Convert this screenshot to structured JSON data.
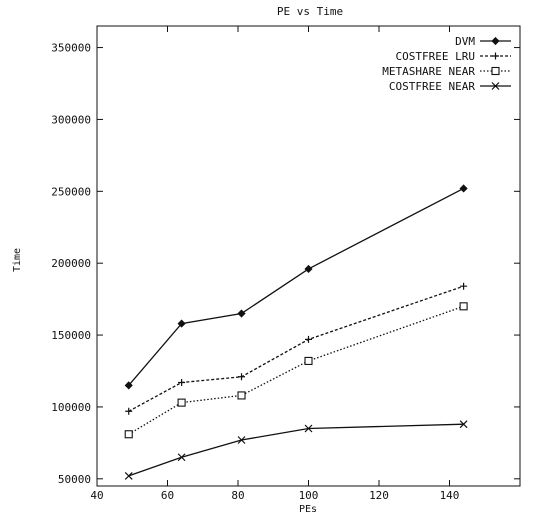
{
  "chart_data": {
    "type": "line",
    "title": "PE vs Time",
    "xlabel": "PEs",
    "ylabel": "Time",
    "xlim": [
      40,
      160
    ],
    "ylim": [
      45000,
      365000
    ],
    "x_ticks": [
      "40",
      "60",
      "80",
      "100",
      "120",
      "140"
    ],
    "y_ticks": [
      "50000",
      "100000",
      "150000",
      "200000",
      "250000",
      "300000",
      "350000"
    ],
    "x_tick_values": [
      40,
      60,
      80,
      100,
      120,
      140
    ],
    "y_tick_values": [
      50000,
      100000,
      150000,
      200000,
      250000,
      300000,
      350000
    ],
    "grid": false,
    "legend_position": "top-right",
    "series": [
      {
        "name": "DVM",
        "marker": "diamond",
        "dash": "solid",
        "x": [
          49,
          64,
          81,
          100,
          144
        ],
        "y": [
          115000,
          158000,
          165000,
          196000,
          252000
        ]
      },
      {
        "name": "COSTFREE LRU",
        "marker": "plus",
        "dash": "dashed",
        "x": [
          49,
          64,
          81,
          100,
          144
        ],
        "y": [
          97000,
          117000,
          121000,
          147000,
          184000
        ]
      },
      {
        "name": "METASHARE NEAR",
        "marker": "square",
        "dash": "dotted",
        "x": [
          49,
          64,
          81,
          100,
          144
        ],
        "y": [
          81000,
          103000,
          108000,
          132000,
          170000
        ]
      },
      {
        "name": "COSTFREE NEAR",
        "marker": "cross",
        "dash": "solid",
        "x": [
          49,
          64,
          81,
          100,
          144
        ],
        "y": [
          52000,
          65000,
          77000,
          85000,
          88000
        ]
      }
    ]
  }
}
